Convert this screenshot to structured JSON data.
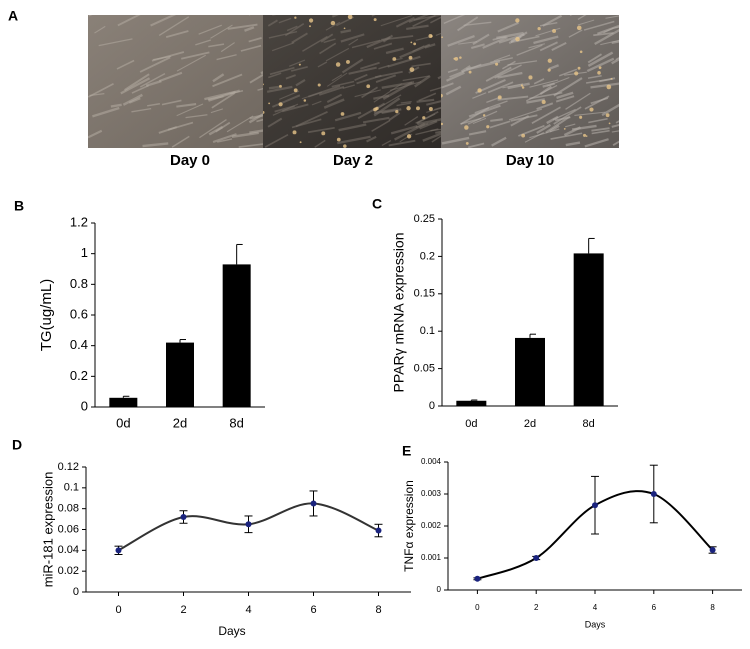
{
  "panel_a": {
    "panel_label": "A",
    "images": [
      "Day 0",
      "Day 2",
      "Day 10"
    ]
  },
  "chart_data": [
    {
      "type": "bar",
      "panel_label": "B",
      "ylabel": "TG(ug/mL)",
      "categories": [
        "0d",
        "2d",
        "8d"
      ],
      "values": [
        0.06,
        0.42,
        0.93
      ],
      "errors": [
        0.01,
        0.02,
        0.13
      ],
      "color": "#000000",
      "ylim": [
        0,
        1.2
      ],
      "yticks": [
        0,
        0.2,
        0.4,
        0.6,
        0.8,
        1,
        1.2
      ]
    },
    {
      "type": "bar",
      "panel_label": "C",
      "ylabel": "PPARγ mRNA expression",
      "categories": [
        "0d",
        "2d",
        "8d"
      ],
      "values": [
        0.007,
        0.091,
        0.204
      ],
      "errors": [
        0.001,
        0.005,
        0.02
      ],
      "color": "#000000",
      "ylim": [
        0,
        0.25
      ],
      "yticks": [
        0,
        0.05,
        0.1,
        0.15,
        0.2,
        0.25
      ]
    },
    {
      "type": "line",
      "panel_label": "D",
      "ylabel": "miR-181 expression",
      "xlabel": "Days",
      "x": [
        0,
        2,
        4,
        6,
        8
      ],
      "values": [
        0.04,
        0.072,
        0.065,
        0.085,
        0.059
      ],
      "errors": [
        0.004,
        0.006,
        0.008,
        0.012,
        0.006
      ],
      "color": "#333333",
      "marker_color": "#1a237e",
      "xlim": [
        -1,
        9
      ],
      "xticks": [
        0,
        2,
        4,
        6,
        8
      ],
      "ylim": [
        0,
        0.12
      ],
      "yticks": [
        0,
        0.02,
        0.04,
        0.06,
        0.08,
        0.1,
        0.12
      ]
    },
    {
      "type": "line",
      "panel_label": "E",
      "ylabel": "TNFα expression",
      "xlabel": "Days",
      "x": [
        0,
        2,
        4,
        6,
        8
      ],
      "values": [
        0.00035,
        0.001,
        0.00265,
        0.003,
        0.00125
      ],
      "errors": [
        3e-05,
        5e-05,
        0.0009,
        0.0009,
        0.0001
      ],
      "color": "#000000",
      "marker_color": "#1a237e",
      "xlim": [
        -1,
        9
      ],
      "xticks": [
        0,
        2,
        4,
        6,
        8
      ],
      "ylim": [
        0,
        0.004
      ],
      "yticks": [
        0,
        0.001,
        0.002,
        0.003,
        0.004
      ]
    }
  ]
}
